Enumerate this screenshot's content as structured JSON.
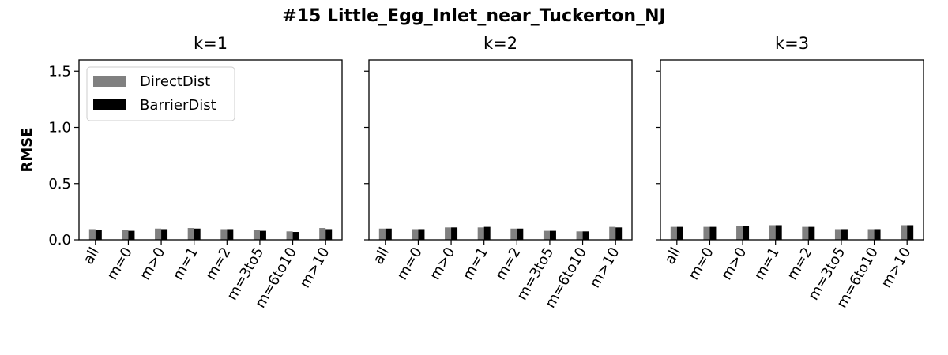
{
  "chart_data": {
    "suptitle": "#15 Little_Egg_Inlet_near_Tuckerton_NJ",
    "ylabel": "RMSE",
    "ylim": [
      0,
      1.6
    ],
    "yticks": [
      "0.0",
      "0.5",
      "1.0",
      "1.5"
    ],
    "yticks_values": [
      0,
      0.5,
      1.0,
      1.5
    ],
    "categories": [
      "all",
      "m=0",
      "m>0",
      "m=1",
      "m=2",
      "m=3to5",
      "m=6to10",
      "m>10"
    ],
    "legend": {
      "placement": "upper-left",
      "entries": [
        "DirectDist",
        "BarrierDist"
      ]
    },
    "colors": {
      "DirectDist": "#808080",
      "BarrierDist": "#000000"
    },
    "panels": [
      {
        "type": "bar",
        "title": "k=1",
        "series": [
          {
            "name": "DirectDist",
            "values": [
              0.095,
              0.09,
              0.1,
              0.105,
              0.095,
              0.09,
              0.075,
              0.105
            ]
          },
          {
            "name": "BarrierDist",
            "values": [
              0.085,
              0.08,
              0.095,
              0.1,
              0.095,
              0.08,
              0.07,
              0.095
            ]
          }
        ]
      },
      {
        "type": "bar",
        "title": "k=2",
        "series": [
          {
            "name": "DirectDist",
            "values": [
              0.1,
              0.095,
              0.11,
              0.11,
              0.1,
              0.08,
              0.075,
              0.115
            ]
          },
          {
            "name": "BarrierDist",
            "values": [
              0.1,
              0.095,
              0.11,
              0.115,
              0.1,
              0.08,
              0.075,
              0.11
            ]
          }
        ]
      },
      {
        "type": "bar",
        "title": "k=3",
        "series": [
          {
            "name": "DirectDist",
            "values": [
              0.115,
              0.115,
              0.12,
              0.13,
              0.115,
              0.095,
              0.095,
              0.13
            ]
          },
          {
            "name": "BarrierDist",
            "values": [
              0.115,
              0.115,
              0.12,
              0.13,
              0.115,
              0.095,
              0.095,
              0.13
            ]
          }
        ]
      }
    ]
  }
}
